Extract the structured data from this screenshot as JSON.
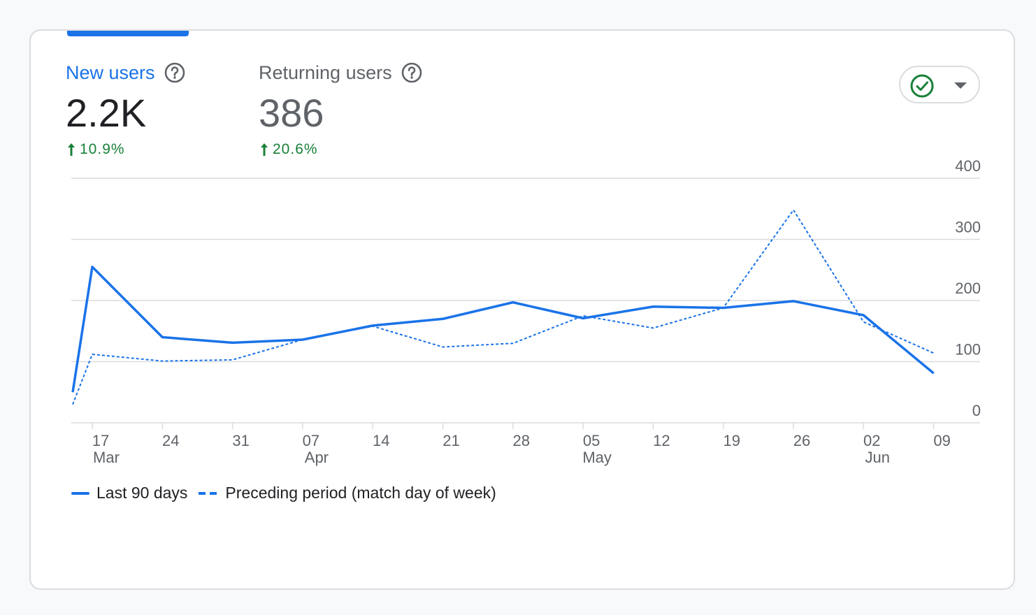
{
  "metrics": {
    "new_users": {
      "label": "New users",
      "value": "2.2K",
      "change": "10.9%"
    },
    "returning_users": {
      "label": "Returning users",
      "value": "386",
      "change": "20.6%"
    }
  },
  "colors": {
    "accent": "#1a73e8",
    "positive": "#188038",
    "gridline": "#dadce0",
    "axis_text": "#5f6368",
    "check": "#188038"
  },
  "icons": {
    "help": "help-circle-icon",
    "trend_up": "arrow-up-icon",
    "compare": "check-circle-icon",
    "dropdown": "caret-down-icon"
  },
  "chart_data": {
    "type": "line",
    "x": [
      "Mar 14",
      "Mar 17",
      "Mar 24",
      "Mar 31",
      "Apr 07",
      "Apr 14",
      "Apr 21",
      "Apr 28",
      "May 05",
      "May 12",
      "May 19",
      "May 26",
      "Jun 02",
      "Jun 09"
    ],
    "x_ticks": [
      {
        "day": "17",
        "month": "Mar",
        "index": 1
      },
      {
        "day": "24",
        "month": "",
        "index": 2
      },
      {
        "day": "31",
        "month": "",
        "index": 3
      },
      {
        "day": "07",
        "month": "Apr",
        "index": 4
      },
      {
        "day": "14",
        "month": "",
        "index": 5
      },
      {
        "day": "21",
        "month": "",
        "index": 6
      },
      {
        "day": "28",
        "month": "",
        "index": 7
      },
      {
        "day": "05",
        "month": "May",
        "index": 8
      },
      {
        "day": "12",
        "month": "",
        "index": 9
      },
      {
        "day": "19",
        "month": "",
        "index": 10
      },
      {
        "day": "26",
        "month": "",
        "index": 11
      },
      {
        "day": "02",
        "month": "Jun",
        "index": 12
      },
      {
        "day": "09",
        "month": "",
        "index": 13
      }
    ],
    "series": [
      {
        "name": "Last 90 days",
        "style": "solid",
        "values": [
          50,
          255,
          140,
          131,
          136,
          159,
          170,
          197,
          171,
          190,
          188,
          199,
          176,
          81
        ]
      },
      {
        "name": "Preceding period (match day of week)",
        "style": "dashed",
        "values": [
          30,
          112,
          101,
          103,
          136,
          158,
          124,
          130,
          175,
          155,
          188,
          348,
          165,
          114
        ]
      }
    ],
    "y_ticks": [
      0,
      100,
      200,
      300,
      400
    ],
    "ylim": [
      0,
      400
    ],
    "grid": true,
    "legend_position": "bottom-left"
  }
}
